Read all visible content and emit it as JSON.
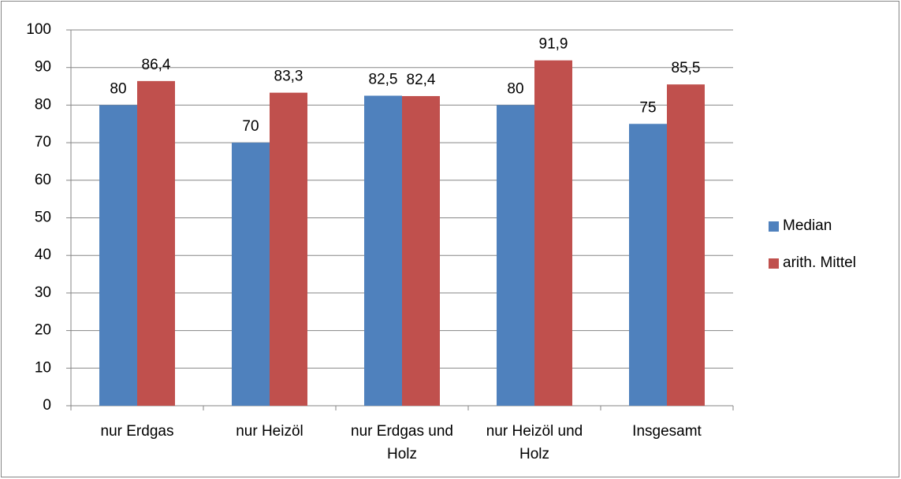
{
  "chart_data": {
    "type": "bar",
    "categories": [
      "nur Erdgas",
      "nur Heizöl",
      "nur Erdgas und Holz",
      "nur Heizöl und Holz",
      "Insgesamt"
    ],
    "series": [
      {
        "name": "Median",
        "color": "#4f81bd",
        "values": [
          80,
          70,
          82.5,
          80,
          75
        ],
        "value_labels": [
          "80",
          "70",
          "82,5",
          "80",
          "75"
        ]
      },
      {
        "name": "arith. Mittel",
        "color": "#c0504d",
        "values": [
          86.4,
          83.3,
          82.4,
          91.9,
          85.5
        ],
        "value_labels": [
          "86,4",
          "83,3",
          "82,4",
          "91,9",
          "85,5"
        ]
      }
    ],
    "ylim": [
      0,
      100
    ],
    "yticks": [
      0,
      10,
      20,
      30,
      40,
      50,
      60,
      70,
      80,
      90,
      100
    ],
    "grid": true,
    "legend": "right"
  }
}
